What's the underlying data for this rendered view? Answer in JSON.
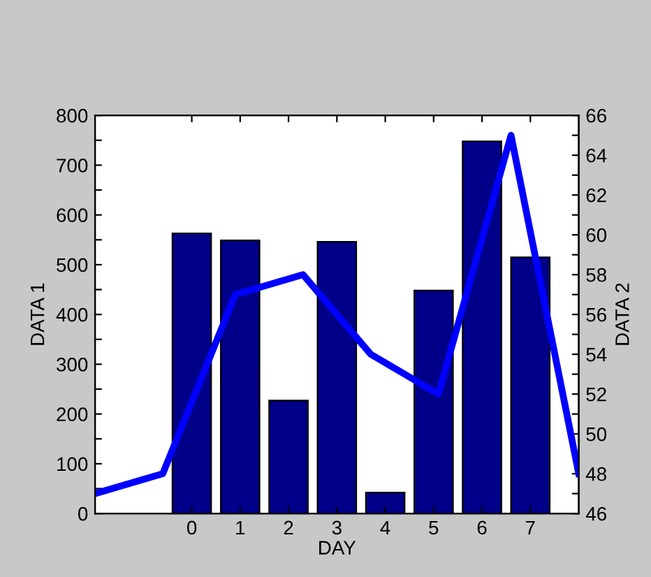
{
  "chart_data": {
    "type": "bar",
    "xlabel": "DAY",
    "ylabel": "DATA 1",
    "y2label": "DATA 2",
    "x": [
      0,
      1,
      2,
      3,
      4,
      5,
      6,
      7
    ],
    "xlim": [
      -2,
      8
    ],
    "xticks": [
      0,
      1,
      2,
      3,
      4,
      5,
      6,
      7
    ],
    "ylim": [
      0,
      800
    ],
    "yticks": [
      0,
      {
        "value": 50,
        "label": null
      },
      100,
      {
        "value": 150,
        "label": null
      },
      200,
      {
        "value": 250,
        "label": null
      },
      300,
      {
        "value": 350,
        "label": null
      },
      400,
      {
        "value": 450,
        "label": null
      },
      500,
      {
        "value": 550,
        "label": null
      },
      600,
      {
        "value": 650,
        "label": null
      },
      700,
      {
        "value": 750,
        "label": null
      },
      800
    ],
    "y2lim": [
      46,
      66
    ],
    "y2ticks": [
      46,
      {
        "value": 47,
        "label": null
      },
      48,
      {
        "value": 49,
        "label": null
      },
      50,
      {
        "value": 51,
        "label": null
      },
      52,
      {
        "value": 53,
        "label": null
      },
      54,
      {
        "value": 55,
        "label": null
      },
      56,
      {
        "value": 57,
        "label": null
      },
      58,
      {
        "value": 59,
        "label": null
      },
      60,
      {
        "value": 61,
        "label": null
      },
      62,
      {
        "value": 63,
        "label": null
      },
      64,
      {
        "value": 65,
        "label": null
      },
      66
    ],
    "series": [
      {
        "color": "#000088",
        "values": [
          563,
          549,
          227,
          546,
          42,
          448,
          748,
          515
        ]
      },
      {
        "type": "line",
        "axis": "y2",
        "color": "#0000ff",
        "x": [
          -2,
          -0.6,
          0.9,
          2.3,
          3.7,
          5.1,
          6.6,
          8
        ],
        "values": [
          47,
          48,
          57,
          58,
          54,
          52,
          65,
          48
        ]
      }
    ]
  }
}
